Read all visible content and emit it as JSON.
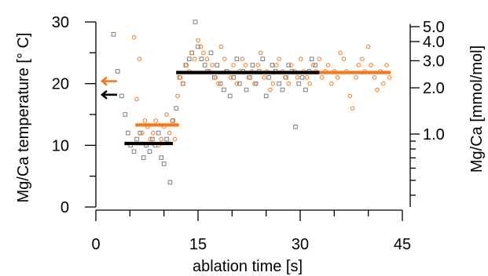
{
  "chart_data": {
    "type": "scatter",
    "xlabel": "ablation time [s]",
    "ylabel_left": "Mg/Ca temperature [° C]",
    "ylabel_right": "Mg/Ca [mmol/mol]",
    "xlim": [
      -0.5,
      45.5
    ],
    "ylim_left": [
      -0.5,
      30
    ],
    "ylim_right_log": [
      0.335,
      5.2
    ],
    "x_ticks": [
      0,
      15,
      30,
      45
    ],
    "x_minor_ticks": [
      5,
      10,
      20,
      25,
      35,
      40
    ],
    "y_ticks_left": [
      0,
      10,
      20,
      30
    ],
    "y_ticks_right": [
      1.0,
      2.0,
      3.0,
      4.0,
      5.0
    ],
    "y_ticks_right_labels": [
      "1.0",
      "2.0",
      "3.0",
      "4.0",
      "5.0"
    ],
    "y_minor_ticks_right": [
      0.4,
      0.5,
      0.6,
      0.7,
      0.8,
      0.9
    ],
    "grid": false,
    "colors": {
      "gray": "#7f7f7f",
      "orange": "#f47a20",
      "black": "#000000"
    },
    "series": [
      {
        "marker": "square-open",
        "color": "#7f7f7f",
        "x": [
          2.6,
          3.2,
          3.8,
          4.3,
          4.7,
          5.1,
          5.6,
          6.0,
          6.5,
          7.0,
          7.4,
          7.9,
          8.3,
          8.7,
          9.2,
          9.6,
          10.0,
          10.4,
          10.9,
          11.3,
          11.8,
          12.3,
          12.8,
          13.2,
          13.7,
          14.1,
          14.6,
          15.0,
          15.5,
          16.0,
          16.4,
          16.9,
          17.4,
          17.8,
          18.3,
          18.8,
          19.2,
          19.7,
          20.2,
          20.7,
          21.1,
          21.6,
          22.1,
          22.6,
          23.0,
          23.5,
          24.0,
          24.5,
          25.0,
          25.4,
          25.9,
          26.4,
          26.9,
          27.4,
          27.9,
          28.3,
          28.8,
          29.3,
          29.8,
          30.3,
          30.8,
          31.3,
          31.7,
          32.2
        ],
        "y": [
          28,
          22,
          18,
          15,
          12,
          10,
          9,
          11,
          12,
          8,
          10,
          9,
          11,
          10,
          12,
          8,
          7,
          11,
          4,
          14,
          16,
          21,
          20,
          23,
          24,
          25,
          30,
          26,
          24,
          23,
          22,
          25,
          21,
          23,
          20,
          19,
          22,
          18,
          21,
          24,
          20,
          22,
          19,
          21,
          23,
          20,
          22,
          24,
          18,
          21,
          23,
          22,
          20,
          19,
          21,
          23,
          22,
          13,
          20,
          21,
          19,
          22,
          24,
          23
        ]
      },
      {
        "marker": "circle-open",
        "color": "#f47a20",
        "x": [
          5.6,
          6.0,
          6.4,
          6.8,
          7.2,
          7.6,
          8.0,
          8.4,
          8.8,
          9.2,
          9.6,
          10.0,
          10.4,
          10.8,
          11.2,
          11.6,
          12.0,
          12.4,
          12.8,
          13.3,
          13.7,
          14.1,
          14.5,
          15.0,
          15.4,
          15.8,
          16.3,
          16.7,
          17.1,
          17.6,
          18.0,
          18.4,
          18.9,
          19.3,
          19.8,
          20.2,
          20.7,
          21.1,
          21.5,
          22.0,
          22.4,
          22.9,
          23.3,
          23.8,
          24.2,
          24.7,
          25.1,
          25.6,
          26.0,
          26.5,
          26.9,
          27.4,
          27.8,
          28.3,
          28.7,
          29.2,
          29.6,
          30.1,
          30.5,
          31.0,
          31.4,
          31.9,
          32.3,
          32.8,
          33.2,
          33.7,
          34.1,
          34.6,
          35.0,
          35.5,
          35.9,
          36.4,
          36.8,
          37.3,
          37.7,
          38.2,
          38.6,
          39.1,
          39.5,
          40.0,
          40.4,
          40.9,
          41.3,
          41.8,
          42.2,
          42.7,
          43.1
        ],
        "y": [
          27.5,
          17.5,
          24,
          12,
          14,
          13,
          11,
          12,
          14,
          10,
          11,
          13,
          15,
          12,
          14,
          11,
          18,
          21,
          20,
          23,
          22,
          25,
          24,
          27,
          26,
          25,
          24,
          22,
          23,
          21,
          20,
          26,
          24,
          22,
          21,
          23,
          20,
          22,
          24,
          23,
          21,
          22,
          20,
          23,
          25,
          21,
          22,
          19,
          20,
          23,
          24,
          22,
          21,
          20,
          23,
          22,
          21,
          24,
          22,
          21,
          20,
          23,
          22,
          24,
          21,
          22,
          23,
          20,
          22,
          21,
          25,
          24,
          22,
          18,
          16,
          21,
          23,
          24,
          22,
          26,
          23,
          21,
          19,
          22,
          20,
          23,
          21
        ]
      }
    ],
    "means": [
      {
        "color": "#000000",
        "x": [
          4.2,
          11.3
        ],
        "y": 10.3
      },
      {
        "color": "#f47a20",
        "x": [
          5.8,
          12.2
        ],
        "y": 13.3
      },
      {
        "color": "#f47a20",
        "x": [
          11.8,
          43.3
        ],
        "y": 21.8
      },
      {
        "color": "#000000",
        "x": [
          11.8,
          32.8
        ],
        "y": 21.8
      }
    ],
    "arrows": [
      {
        "color": "#f47a20",
        "y": 20.4
      },
      {
        "color": "#000000",
        "y": 18.2
      }
    ]
  }
}
